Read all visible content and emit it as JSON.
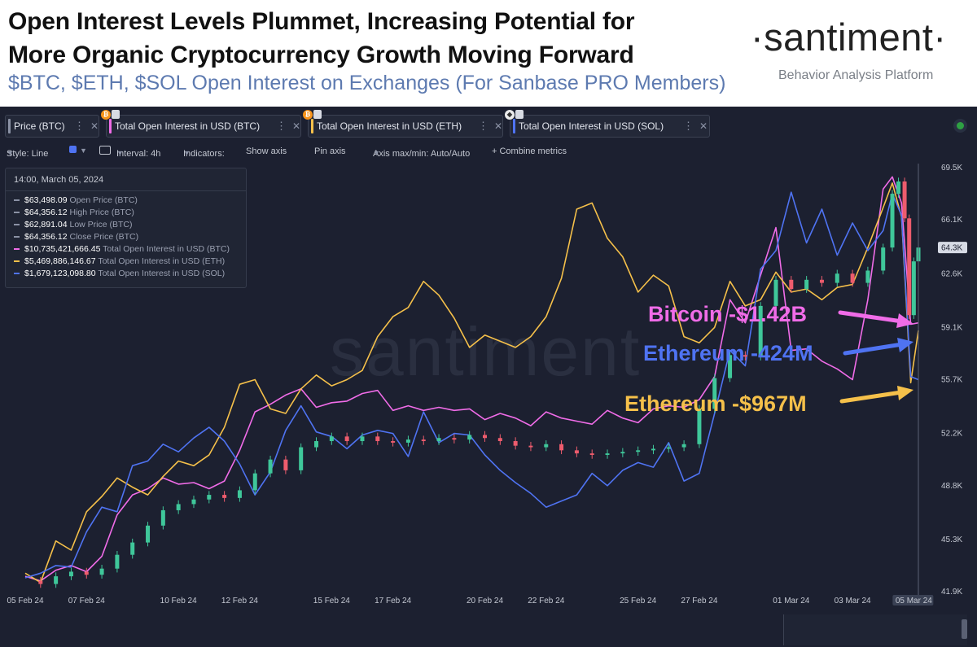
{
  "header": {
    "headline": "Open Interest Levels Plummet, Increasing Potential for\nMore Organic Cryptocurrency Growth Moving Forward",
    "subtitle": "$BTC, $ETH, $SOL Open Interest on Exchanges (For Sanbase PRO Members)",
    "brand": "·santiment·",
    "brand_tagline": "Behavior Analysis Platform"
  },
  "tabs": [
    {
      "label": "Price (BTC)",
      "color": "#8b92a5",
      "badge": ""
    },
    {
      "label": "Total Open Interest in USD (BTC)",
      "color": "#f06ce8",
      "badge": "bitcoin-icon"
    },
    {
      "label": "Total Open Interest in USD (ETH)",
      "color": "#f5c04a",
      "badge": "bitcoin-icon"
    },
    {
      "label": "Total Open Interest in USD (SOL)",
      "color": "#4f73f2",
      "badge": "ethereum-icon"
    }
  ],
  "toolbar": {
    "style": "Style: Line",
    "interval": "Interval: 4h",
    "indicators": "Indicators:",
    "show_axis": "Show axis",
    "pin_axis": "Pin axis",
    "axis_maxmin": "Axis max/min: Auto/Auto",
    "combine": "+  Combine metrics"
  },
  "tooltip": {
    "date": "14:00, March 05, 2024",
    "rows": [
      {
        "value": "$63,498.09",
        "label": "Open Price (BTC)",
        "color": "#8b92a5"
      },
      {
        "value": "$64,356.12",
        "label": "High Price (BTC)",
        "color": "#8b92a5"
      },
      {
        "value": "$62,891.04",
        "label": "Low Price (BTC)",
        "color": "#8b92a5"
      },
      {
        "value": "$64,356.12",
        "label": "Close Price (BTC)",
        "color": "#8b92a5"
      },
      {
        "value": "$10,735,421,666.45",
        "label": "Total Open Interest in USD (BTC)",
        "color": "#f06ce8"
      },
      {
        "value": "$5,469,886,146.67",
        "label": "Total Open Interest in USD (ETH)",
        "color": "#f5c04a"
      },
      {
        "value": "$1,679,123,098.80",
        "label": "Total Open Interest in USD (SOL)",
        "color": "#4f73f2"
      }
    ]
  },
  "watermark": "santiment",
  "annotations": [
    {
      "text": "Bitcoin -$1.42B",
      "color": "#f06ce8"
    },
    {
      "text": "Ethereum -424M",
      "color": "#4f73f2"
    },
    {
      "text": "Ethereum -$967M",
      "color": "#f5c04a"
    }
  ],
  "chart_data": {
    "type": "line",
    "x_tick_labels": [
      "05 Feb 24",
      "07 Feb 24",
      "10 Feb 24",
      "12 Feb 24",
      "15 Feb 24",
      "17 Feb 24",
      "20 Feb 24",
      "22 Feb 24",
      "25 Feb 24",
      "27 Feb 24",
      "01 Mar 24",
      "03 Mar 24",
      "05 Mar 24"
    ],
    "x_tick_days": [
      0,
      2,
      5,
      7,
      10,
      12,
      15,
      17,
      20,
      22,
      25,
      27,
      29
    ],
    "y_tick_labels": [
      "69.5K",
      "66.1K",
      "62.6K",
      "59.1K",
      "55.7K",
      "52.2K",
      "48.8K",
      "45.3K",
      "41.9K"
    ],
    "y_ticks": [
      69500,
      66100,
      62600,
      59100,
      55700,
      52200,
      48800,
      45300,
      41900
    ],
    "ylim": [
      41900,
      69500
    ],
    "current_price_label": "64.3K",
    "current_price": 64300,
    "price_series_name": "Price (BTC)",
    "price_close": [
      [
        0,
        42600
      ],
      [
        0.5,
        42400
      ],
      [
        1,
        42900
      ],
      [
        1.5,
        43200
      ],
      [
        2,
        43000
      ],
      [
        2.5,
        43400
      ],
      [
        3,
        44300
      ],
      [
        3.5,
        45100
      ],
      [
        4,
        46200
      ],
      [
        4.5,
        47200
      ],
      [
        5,
        47600
      ],
      [
        5.5,
        47900
      ],
      [
        6,
        48200
      ],
      [
        6.5,
        48000
      ],
      [
        7,
        48500
      ],
      [
        7.5,
        49600
      ],
      [
        8,
        50500
      ],
      [
        8.5,
        49800
      ],
      [
        9,
        51300
      ],
      [
        9.5,
        51700
      ],
      [
        10,
        52000
      ],
      [
        10.5,
        51700
      ],
      [
        11,
        52000
      ],
      [
        11.5,
        51700
      ],
      [
        12,
        51600
      ],
      [
        12.5,
        51800
      ],
      [
        13,
        51700
      ],
      [
        13.5,
        51900
      ],
      [
        14,
        51800
      ],
      [
        14.5,
        52100
      ],
      [
        15,
        51900
      ],
      [
        15.5,
        51700
      ],
      [
        16,
        51400
      ],
      [
        16.5,
        51300
      ],
      [
        17,
        51500
      ],
      [
        17.5,
        51100
      ],
      [
        18,
        50900
      ],
      [
        18.5,
        50800
      ],
      [
        19,
        50900
      ],
      [
        19.5,
        51000
      ],
      [
        20,
        51100
      ],
      [
        20.5,
        51200
      ],
      [
        21,
        51300
      ],
      [
        21.5,
        51500
      ],
      [
        22,
        53800
      ],
      [
        22.5,
        55800
      ],
      [
        23,
        57300
      ],
      [
        23.5,
        57200
      ],
      [
        24,
        60500
      ],
      [
        24.5,
        62200
      ],
      [
        25,
        61600
      ],
      [
        25.5,
        62200
      ],
      [
        26,
        62000
      ],
      [
        26.5,
        62600
      ],
      [
        27,
        62000
      ],
      [
        27.5,
        62800
      ],
      [
        28,
        64300
      ],
      [
        28.3,
        67800
      ],
      [
        28.5,
        68600
      ],
      [
        28.7,
        66200
      ],
      [
        28.85,
        59900
      ],
      [
        29,
        63400
      ],
      [
        29.15,
        64300
      ]
    ],
    "series": [
      {
        "name": "Total Open Interest in USD (BTC)",
        "color": "#f06ce8",
        "values_on_price_axis": [
          [
            0,
            42900
          ],
          [
            0.5,
            42600
          ],
          [
            1,
            43300
          ],
          [
            1.5,
            43600
          ],
          [
            2,
            43200
          ],
          [
            2.5,
            44200
          ],
          [
            3,
            46900
          ],
          [
            3.5,
            48200
          ],
          [
            4,
            48600
          ],
          [
            4.5,
            49300
          ],
          [
            5,
            48900
          ],
          [
            5.5,
            49000
          ],
          [
            6,
            48600
          ],
          [
            6.5,
            49100
          ],
          [
            7,
            51100
          ],
          [
            7.5,
            53600
          ],
          [
            8,
            54100
          ],
          [
            8.5,
            54700
          ],
          [
            9,
            55100
          ],
          [
            9.5,
            53900
          ],
          [
            10,
            54200
          ],
          [
            10.5,
            54300
          ],
          [
            11,
            54800
          ],
          [
            11.5,
            55000
          ],
          [
            12,
            53700
          ],
          [
            12.5,
            54000
          ],
          [
            13,
            53700
          ],
          [
            13.5,
            53900
          ],
          [
            14,
            53700
          ],
          [
            14.5,
            53800
          ],
          [
            15,
            53100
          ],
          [
            15.5,
            53500
          ],
          [
            16,
            53200
          ],
          [
            16.5,
            52700
          ],
          [
            17,
            53600
          ],
          [
            17.5,
            53200
          ],
          [
            18,
            53000
          ],
          [
            18.5,
            52800
          ],
          [
            19,
            53700
          ],
          [
            19.5,
            53200
          ],
          [
            20,
            52900
          ],
          [
            20.5,
            53800
          ],
          [
            21,
            54000
          ],
          [
            21.5,
            53900
          ],
          [
            22,
            54400
          ],
          [
            22.5,
            55900
          ],
          [
            23,
            60900
          ],
          [
            23.5,
            59400
          ],
          [
            24,
            62500
          ],
          [
            24.5,
            65600
          ],
          [
            25,
            57600
          ],
          [
            25.5,
            57700
          ],
          [
            26,
            56900
          ],
          [
            26.5,
            56400
          ],
          [
            27,
            55700
          ],
          [
            27.5,
            60900
          ],
          [
            28,
            68100
          ],
          [
            28.3,
            68900
          ],
          [
            28.6,
            67200
          ],
          [
            28.9,
            59300
          ],
          [
            29.15,
            59400
          ]
        ]
      },
      {
        "name": "Total Open Interest in USD (ETH)",
        "color": "#f5c04a",
        "values_on_price_axis": [
          [
            0,
            43100
          ],
          [
            0.5,
            42500
          ],
          [
            1,
            45200
          ],
          [
            1.5,
            44600
          ],
          [
            2,
            47100
          ],
          [
            2.5,
            48100
          ],
          [
            3,
            49300
          ],
          [
            3.5,
            48700
          ],
          [
            4,
            48200
          ],
          [
            4.5,
            49400
          ],
          [
            5,
            50400
          ],
          [
            5.5,
            50100
          ],
          [
            6,
            50800
          ],
          [
            6.5,
            52600
          ],
          [
            7,
            55400
          ],
          [
            7.5,
            55700
          ],
          [
            8,
            53800
          ],
          [
            8.5,
            53500
          ],
          [
            9,
            55100
          ],
          [
            9.5,
            56000
          ],
          [
            10,
            55300
          ],
          [
            10.5,
            55700
          ],
          [
            11,
            56300
          ],
          [
            11.5,
            58500
          ],
          [
            12,
            59800
          ],
          [
            12.5,
            60400
          ],
          [
            13,
            62100
          ],
          [
            13.5,
            61200
          ],
          [
            14,
            59700
          ],
          [
            14.5,
            57800
          ],
          [
            15,
            58600
          ],
          [
            15.5,
            58200
          ],
          [
            16,
            57800
          ],
          [
            16.5,
            58500
          ],
          [
            17,
            59800
          ],
          [
            17.5,
            62300
          ],
          [
            18,
            66800
          ],
          [
            18.5,
            67200
          ],
          [
            19,
            64900
          ],
          [
            19.5,
            63700
          ],
          [
            20,
            61400
          ],
          [
            20.5,
            62500
          ],
          [
            21,
            61800
          ],
          [
            21.5,
            58500
          ],
          [
            22,
            58100
          ],
          [
            22.5,
            59100
          ],
          [
            23,
            62100
          ],
          [
            23.5,
            60500
          ],
          [
            24,
            60900
          ],
          [
            24.5,
            62700
          ],
          [
            25,
            61400
          ],
          [
            25.5,
            61600
          ],
          [
            26,
            60900
          ],
          [
            26.5,
            61700
          ],
          [
            27,
            61900
          ],
          [
            27.5,
            64300
          ],
          [
            28,
            66900
          ],
          [
            28.3,
            68500
          ],
          [
            28.6,
            66300
          ],
          [
            28.9,
            55500
          ],
          [
            29.15,
            58900
          ]
        ]
      },
      {
        "name": "Total Open Interest in USD (SOL)",
        "color": "#4f73f2",
        "values_on_price_axis": [
          [
            0,
            42800
          ],
          [
            0.5,
            43100
          ],
          [
            1,
            43600
          ],
          [
            1.5,
            43500
          ],
          [
            2,
            45800
          ],
          [
            2.5,
            47400
          ],
          [
            3,
            47100
          ],
          [
            3.5,
            50100
          ],
          [
            4,
            50400
          ],
          [
            4.5,
            51500
          ],
          [
            5,
            51000
          ],
          [
            5.5,
            51900
          ],
          [
            6,
            52600
          ],
          [
            6.5,
            51700
          ],
          [
            7,
            50200
          ],
          [
            7.5,
            48200
          ],
          [
            8,
            49700
          ],
          [
            8.5,
            52400
          ],
          [
            9,
            54000
          ],
          [
            9.5,
            52300
          ],
          [
            10,
            52000
          ],
          [
            10.5,
            51200
          ],
          [
            11,
            52100
          ],
          [
            11.5,
            52400
          ],
          [
            12,
            52200
          ],
          [
            12.5,
            50700
          ],
          [
            13,
            53600
          ],
          [
            13.5,
            51600
          ],
          [
            14,
            52200
          ],
          [
            14.5,
            52100
          ],
          [
            15,
            50800
          ],
          [
            15.5,
            49800
          ],
          [
            16,
            49000
          ],
          [
            16.5,
            48300
          ],
          [
            17,
            47400
          ],
          [
            17.5,
            47800
          ],
          [
            18,
            48200
          ],
          [
            18.5,
            49600
          ],
          [
            19,
            48800
          ],
          [
            19.5,
            49800
          ],
          [
            20,
            50300
          ],
          [
            20.5,
            50000
          ],
          [
            21,
            51600
          ],
          [
            21.5,
            49100
          ],
          [
            22,
            49600
          ],
          [
            22.5,
            53500
          ],
          [
            23,
            57600
          ],
          [
            23.5,
            56600
          ],
          [
            24,
            62900
          ],
          [
            24.5,
            64100
          ],
          [
            25,
            67900
          ],
          [
            25.5,
            64600
          ],
          [
            26,
            66800
          ],
          [
            26.5,
            63800
          ],
          [
            27,
            65900
          ],
          [
            27.5,
            64100
          ],
          [
            28,
            65400
          ],
          [
            28.3,
            67800
          ],
          [
            28.6,
            66400
          ],
          [
            28.9,
            55900
          ],
          [
            29.15,
            55700
          ]
        ]
      }
    ],
    "grid": false,
    "legend": "top"
  }
}
